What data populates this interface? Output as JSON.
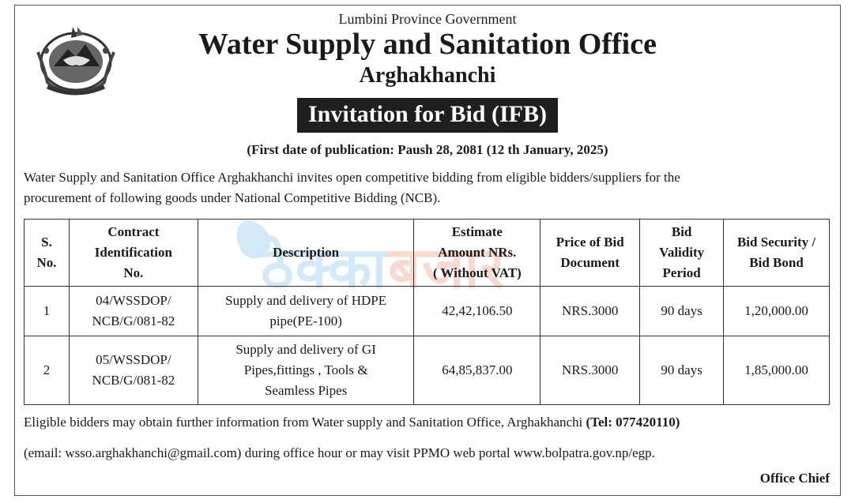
{
  "header": {
    "province": "Lumbini Province Government",
    "office": "Water Supply and Sanitation Office",
    "district": "Arghakhanchi",
    "notice_title": "Invitation for Bid (IFB)",
    "publication_date": "(First date of publication: Paush 28, 2081 (12 th January, 2025)"
  },
  "intro": {
    "line1": "Water Supply and Sanitation  Office Arghakhanchi invites open competitive bidding from eligible bidders/suppliers for the",
    "line2": "procurement of following goods under National Competitive Bidding (NCB)."
  },
  "table": {
    "headers": {
      "sno_1": "S.",
      "sno_2": "No.",
      "contract_1": "Contract",
      "contract_2": "Identification",
      "contract_3": "No.",
      "description": "Description",
      "estimate_1": "Estimate",
      "estimate_2": "Amount NRs.",
      "estimate_3": "( Without VAT)",
      "price_1": "Price of Bid",
      "price_2": "Document",
      "validity_1": "Bid",
      "validity_2": "Validity",
      "validity_3": "Period",
      "security_1": "Bid Security /",
      "security_2": "Bid Bond"
    },
    "rows": [
      {
        "sno": "1",
        "contract_1": "04/WSSDOP/",
        "contract_2": "NCB/G/081-82",
        "desc_1": "Supply and delivery of HDPE",
        "desc_2": "pipe(PE-100)",
        "desc_3": "",
        "estimate": "42,42,106.50",
        "price": "NRS.3000",
        "validity": "90 days",
        "security": "1,20,000.00"
      },
      {
        "sno": "2",
        "contract_1": "05/WSSDOP/",
        "contract_2": "NCB/G/081-82",
        "desc_1": "Supply and delivery of GI",
        "desc_2": "Pipes,fittings , Tools &",
        "desc_3": "Seamless Pipes",
        "estimate": "64,85,837.00",
        "price": "NRS.3000",
        "validity": "90 days",
        "security": "1,85,000.00"
      }
    ]
  },
  "footer": {
    "info_text": "Eligible bidders may obtain further information from Water supply and Sanitation Office, Arghakhanchi",
    "tel": "(Tel: 077420110)",
    "email_line": "(email: wsso.arghakhanchi@gmail.com) during office hour or may visit PPMO web portal www.bolpatra.gov.np/egp.",
    "signatory": "Office Chief"
  },
  "watermark": {
    "text_main": "ठेक्का",
    "text_accent": "बजार"
  },
  "colors": {
    "banner_bg": "#1f1f1f",
    "watermark_blue": "#3aa0e0",
    "watermark_orange": "#e85a2a"
  },
  "icons": {
    "emblem": "nepal-government-emblem"
  }
}
